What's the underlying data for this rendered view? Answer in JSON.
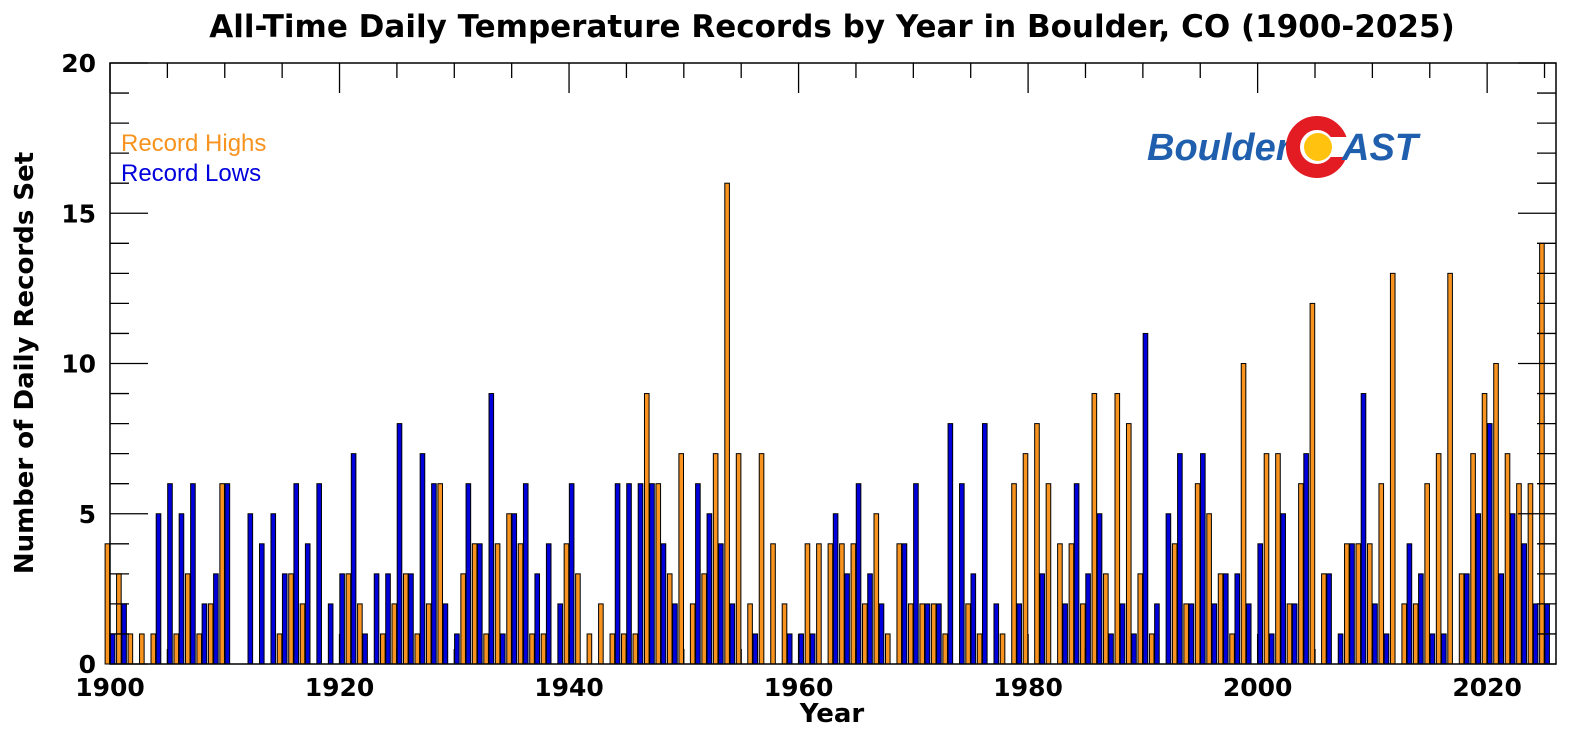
{
  "chart_data": {
    "type": "bar",
    "title": "All-Time Daily Temperature Records by Year in Boulder, CO (1900-2025)",
    "xlabel": "Year",
    "ylabel": "Number of Daily Records Set",
    "xlim": [
      1900,
      2026
    ],
    "ylim": [
      0,
      20
    ],
    "x_ticks": [
      1900,
      1920,
      1940,
      1960,
      1980,
      2000,
      2020
    ],
    "y_ticks": [
      0,
      5,
      10,
      15,
      20
    ],
    "grid": false,
    "legend_position": "top-left",
    "x": [
      1900,
      1901,
      1902,
      1903,
      1904,
      1905,
      1906,
      1907,
      1908,
      1909,
      1910,
      1911,
      1912,
      1913,
      1914,
      1915,
      1916,
      1917,
      1918,
      1919,
      1920,
      1921,
      1922,
      1923,
      1924,
      1925,
      1926,
      1927,
      1928,
      1929,
      1930,
      1931,
      1932,
      1933,
      1934,
      1935,
      1936,
      1937,
      1938,
      1939,
      1940,
      1941,
      1942,
      1943,
      1944,
      1945,
      1946,
      1947,
      1948,
      1949,
      1950,
      1951,
      1952,
      1953,
      1954,
      1955,
      1956,
      1957,
      1958,
      1959,
      1960,
      1961,
      1962,
      1963,
      1964,
      1965,
      1966,
      1967,
      1968,
      1969,
      1970,
      1971,
      1972,
      1973,
      1974,
      1975,
      1976,
      1977,
      1978,
      1979,
      1980,
      1981,
      1982,
      1983,
      1984,
      1985,
      1986,
      1987,
      1988,
      1989,
      1990,
      1991,
      1992,
      1993,
      1994,
      1995,
      1996,
      1997,
      1998,
      1999,
      2000,
      2001,
      2002,
      2003,
      2004,
      2005,
      2006,
      2007,
      2008,
      2009,
      2010,
      2011,
      2012,
      2013,
      2014,
      2015,
      2016,
      2017,
      2018,
      2019,
      2020,
      2021,
      2022,
      2023,
      2024,
      2025
    ],
    "series": [
      {
        "name": "Record Highs",
        "color": "#F7931E",
        "values": [
          4,
          3,
          1,
          1,
          1,
          0,
          1,
          3,
          1,
          2,
          6,
          0,
          0,
          0,
          0,
          1,
          3,
          2,
          0,
          0,
          0,
          3,
          2,
          0,
          1,
          2,
          3,
          1,
          2,
          6,
          0,
          3,
          4,
          1,
          4,
          5,
          4,
          1,
          1,
          0,
          4,
          3,
          1,
          2,
          1,
          1,
          1,
          9,
          6,
          3,
          7,
          2,
          3,
          7,
          16,
          7,
          2,
          7,
          4,
          2,
          0,
          4,
          4,
          4,
          4,
          4,
          2,
          5,
          1,
          4,
          2,
          2,
          2,
          1,
          0,
          2,
          1,
          0,
          1,
          6,
          7,
          8,
          6,
          4,
          4,
          2,
          9,
          3,
          9,
          8,
          3,
          1,
          0,
          4,
          2,
          6,
          5,
          3,
          1,
          10,
          0,
          7,
          7,
          2,
          6,
          12,
          3,
          0,
          4,
          4,
          4,
          6,
          13,
          2,
          2,
          6,
          7,
          13,
          3,
          7,
          9,
          10,
          7,
          6,
          6,
          14
        ]
      },
      {
        "name": "Record Lows",
        "color": "#0000DD",
        "values": [
          1,
          2,
          0,
          0,
          5,
          6,
          5,
          6,
          2,
          3,
          6,
          0,
          5,
          4,
          5,
          3,
          6,
          4,
          6,
          2,
          3,
          7,
          1,
          3,
          3,
          8,
          3,
          7,
          6,
          2,
          1,
          6,
          4,
          9,
          1,
          5,
          6,
          3,
          4,
          2,
          6,
          0,
          0,
          0,
          6,
          6,
          6,
          6,
          4,
          2,
          0,
          6,
          5,
          4,
          2,
          0,
          1,
          0,
          0,
          1,
          1,
          1,
          0,
          5,
          3,
          6,
          3,
          2,
          0,
          4,
          6,
          2,
          2,
          8,
          6,
          3,
          8,
          2,
          0,
          2,
          0,
          3,
          0,
          2,
          6,
          3,
          5,
          1,
          2,
          1,
          11,
          2,
          5,
          7,
          2,
          7,
          2,
          3,
          3,
          2,
          4,
          1,
          5,
          2,
          7,
          0,
          3,
          1,
          4,
          9,
          2,
          1,
          0,
          4,
          3,
          1,
          1,
          0,
          3,
          5,
          8,
          3,
          5,
          4,
          2,
          2
        ]
      }
    ]
  },
  "logo": {
    "word_left": "Boulder",
    "word_right": "AST",
    "text_color": "#1F5FAD",
    "ring_color": "#E31B23",
    "sun_color": "#FFC20E"
  }
}
